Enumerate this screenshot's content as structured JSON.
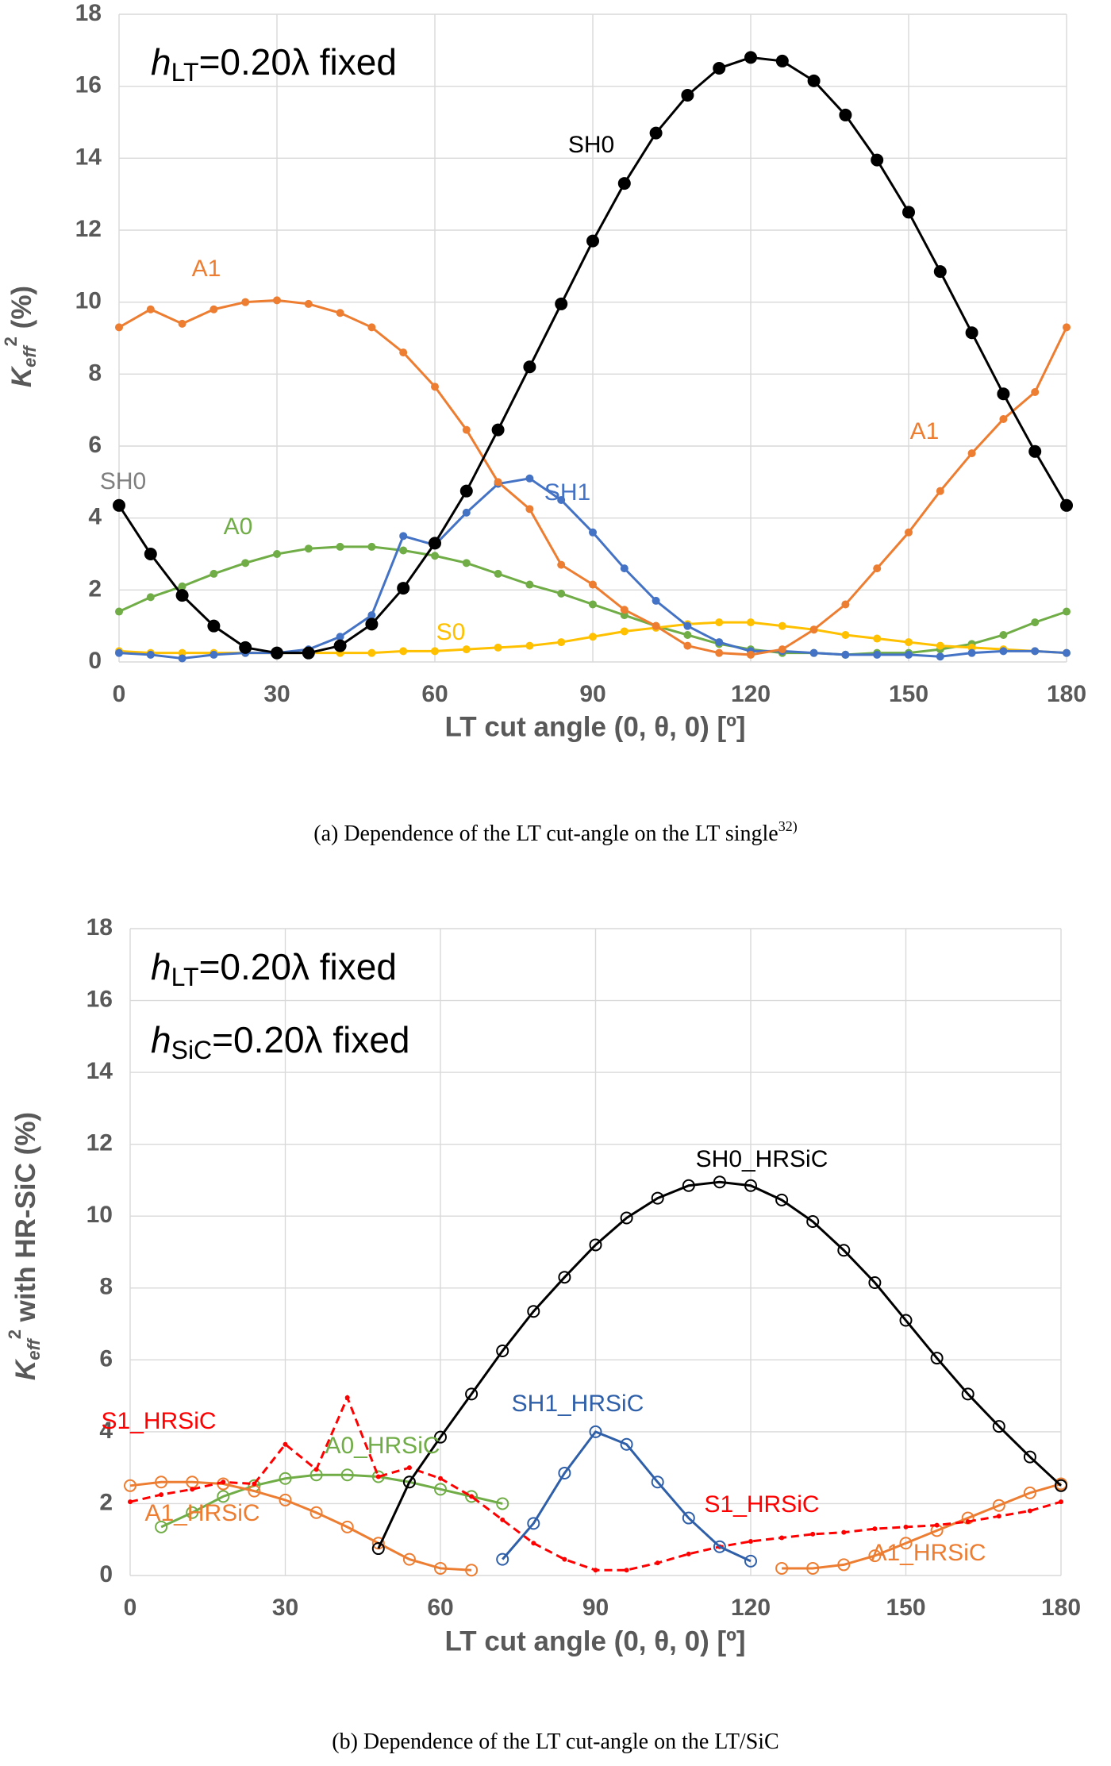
{
  "chart_data": [
    {
      "type": "line",
      "annotations": [
        {
          "italic": "h",
          "sub": "LT",
          "text": "=0.20λ fixed"
        }
      ],
      "xlabel": "LT cut angle (0, θ, 0) [º]",
      "ylabel": {
        "italic": "K",
        "sub": "eff",
        "sup": "2",
        "text": "  (%)"
      },
      "caption": {
        "text": "(a) Dependence of the LT cut-angle on the LT single",
        "sup": "32)"
      },
      "xlim": [
        0,
        180
      ],
      "xticks": [
        0,
        30,
        60,
        90,
        120,
        150,
        180
      ],
      "ylim": [
        0,
        18
      ],
      "yticks": [
        0,
        2,
        4,
        6,
        8,
        10,
        12,
        14,
        16,
        18
      ],
      "grid": true,
      "x": [
        0,
        6,
        12,
        18,
        24,
        30,
        36,
        42,
        48,
        54,
        60,
        66,
        72,
        78,
        84,
        90,
        96,
        102,
        108,
        114,
        120,
        126,
        132,
        138,
        144,
        150,
        156,
        162,
        168,
        174,
        180
      ],
      "series": [
        {
          "name": "A0",
          "color": "#70ad47",
          "marker": "filled",
          "marker_size": 5,
          "values": [
            1.4,
            1.8,
            2.1,
            2.45,
            2.75,
            3.0,
            3.15,
            3.2,
            3.2,
            3.1,
            2.95,
            2.75,
            2.45,
            2.15,
            1.9,
            1.6,
            1.3,
            1.0,
            0.75,
            0.5,
            0.35,
            0.25,
            0.25,
            0.2,
            0.25,
            0.25,
            0.35,
            0.5,
            0.75,
            1.1,
            1.4
          ]
        },
        {
          "name": "S0",
          "color": "#ffc000",
          "marker": "filled",
          "marker_size": 5,
          "values": [
            0.3,
            0.25,
            0.25,
            0.25,
            0.25,
            0.25,
            0.25,
            0.25,
            0.25,
            0.3,
            0.3,
            0.35,
            0.4,
            0.45,
            0.55,
            0.7,
            0.85,
            0.95,
            1.05,
            1.1,
            1.1,
            1.0,
            0.9,
            0.75,
            0.65,
            0.55,
            0.45,
            0.4,
            0.35,
            0.3,
            0.25
          ]
        },
        {
          "name": "SH1",
          "color": "#4472c4",
          "marker": "filled",
          "marker_size": 5,
          "values": [
            0.25,
            0.2,
            0.1,
            0.2,
            0.25,
            0.25,
            0.35,
            0.7,
            1.3,
            3.5,
            3.25,
            4.15,
            4.95,
            5.1,
            4.5,
            3.6,
            2.6,
            1.7,
            1.0,
            0.55,
            0.3,
            0.3,
            0.25,
            0.2,
            0.2,
            0.2,
            0.15,
            0.25,
            0.3,
            0.3,
            0.25
          ]
        },
        {
          "name": "A1",
          "color": "#ed7d31",
          "marker": "filled",
          "marker_size": 5,
          "values": [
            9.3,
            9.8,
            9.4,
            9.8,
            10.0,
            10.05,
            9.95,
            9.7,
            9.3,
            8.6,
            7.65,
            6.45,
            5.0,
            4.25,
            2.7,
            2.15,
            1.45,
            1.0,
            0.45,
            0.25,
            0.2,
            0.35,
            0.9,
            1.6,
            2.6,
            3.6,
            4.75,
            5.8,
            6.75,
            7.5,
            9.3
          ]
        },
        {
          "name": "SH0",
          "color": "#000000",
          "marker": "filled",
          "marker_size": 8,
          "values": [
            4.35,
            3.0,
            1.85,
            1.0,
            0.4,
            0.25,
            0.25,
            0.45,
            1.05,
            2.05,
            3.3,
            4.75,
            6.45,
            8.2,
            9.95,
            11.7,
            13.3,
            14.7,
            15.75,
            16.5,
            16.8,
            16.7,
            16.15,
            15.2,
            13.95,
            12.5,
            10.85,
            9.15,
            7.45,
            5.85,
            4.35
          ]
        }
      ]
    },
    {
      "type": "line",
      "annotations": [
        {
          "italic": "h",
          "sub": "LT",
          "text": "=0.20λ fixed"
        },
        {
          "italic": "h",
          "sub": "SiC",
          "text": "=0.20λ fixed"
        }
      ],
      "xlabel": "LT cut angle (0, θ, 0) [º]",
      "ylabel": {
        "italic": "K",
        "sub": "eff",
        "sup": "2",
        "text": "  with HR-SiC (%)"
      },
      "caption": {
        "text": "(b) Dependence of the LT cut-angle on the LT/SiC"
      },
      "xlim": [
        0,
        180
      ],
      "xticks": [
        0,
        30,
        60,
        90,
        120,
        150,
        180
      ],
      "ylim": [
        0,
        18
      ],
      "yticks": [
        0,
        2,
        4,
        6,
        8,
        10,
        12,
        14,
        16,
        18
      ],
      "grid": true,
      "series": [
        {
          "name": "A0_HRSiC",
          "color": "#70ad47",
          "marker": "open",
          "marker_size": 7,
          "x": [
            6,
            12,
            18,
            24,
            30,
            36,
            42,
            48,
            54,
            60,
            66,
            72
          ],
          "values": [
            1.35,
            1.75,
            2.2,
            2.5,
            2.7,
            2.8,
            2.8,
            2.75,
            2.6,
            2.4,
            2.2,
            2.0
          ]
        },
        {
          "name": "A1_HRSiC",
          "color": "#ed7d31",
          "marker": "open",
          "marker_size": 7,
          "x": [
            0,
            6,
            12,
            18,
            24,
            30,
            36,
            42,
            48,
            54,
            60,
            66,
            72,
            78,
            84,
            90,
            96,
            102,
            108,
            114,
            120,
            126,
            132,
            138,
            144,
            150,
            156,
            162,
            168,
            174,
            180
          ],
          "values": [
            2.5,
            2.6,
            2.6,
            2.55,
            2.35,
            2.1,
            1.75,
            1.35,
            0.9,
            0.45,
            0.2,
            0.15,
            null,
            null,
            null,
            null,
            null,
            null,
            null,
            null,
            null,
            0.2,
            0.2,
            0.3,
            0.55,
            0.9,
            1.25,
            1.6,
            1.95,
            2.3,
            2.55
          ]
        },
        {
          "name": "S1_HRSiC",
          "color": "#ff0000",
          "marker": "filled",
          "marker_size": 3,
          "dashed": true,
          "x": [
            0,
            6,
            12,
            18,
            24,
            30,
            36,
            42,
            48,
            54,
            60,
            66,
            72,
            78,
            84,
            90,
            96,
            102,
            108,
            114,
            120,
            126,
            132,
            138,
            144,
            150,
            156,
            162,
            168,
            174,
            180
          ],
          "values": [
            2.05,
            2.25,
            2.4,
            2.6,
            2.55,
            3.65,
            2.95,
            4.95,
            2.75,
            3.0,
            2.7,
            2.2,
            1.55,
            0.9,
            0.45,
            0.15,
            0.15,
            0.35,
            0.6,
            0.8,
            0.95,
            1.05,
            1.15,
            1.2,
            1.3,
            1.35,
            1.4,
            1.5,
            1.65,
            1.8,
            2.05
          ]
        },
        {
          "name": "SH1_HRSiC",
          "color": "#2e5fa8",
          "marker": "open",
          "marker_size": 7,
          "x": [
            72,
            78,
            84,
            90,
            96,
            102,
            108,
            114,
            120
          ],
          "values": [
            0.45,
            1.45,
            2.85,
            4.0,
            3.65,
            2.6,
            1.6,
            0.8,
            0.4
          ]
        },
        {
          "name": "SH0_HRSiC",
          "color": "#000000",
          "marker": "open",
          "marker_size": 7,
          "x": [
            48,
            54,
            60,
            66,
            72,
            78,
            84,
            90,
            96,
            102,
            108,
            114,
            120,
            126,
            132,
            138,
            144,
            150,
            156,
            162,
            168,
            174,
            180
          ],
          "values": [
            0.75,
            2.6,
            3.85,
            5.05,
            6.25,
            7.35,
            8.3,
            9.2,
            9.95,
            10.5,
            10.85,
            10.95,
            10.85,
            10.45,
            9.85,
            9.05,
            8.15,
            7.1,
            6.05,
            5.05,
            4.15,
            3.3,
            2.5
          ]
        }
      ]
    }
  ]
}
